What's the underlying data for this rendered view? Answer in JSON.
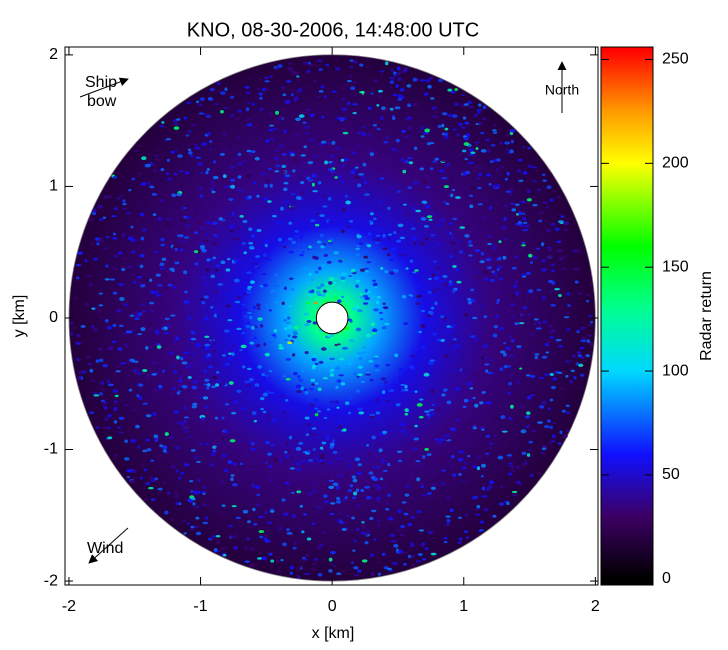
{
  "chart_data": {
    "type": "radar-image",
    "title": "KNO, 08-30-2006, 14:48:00 UTC",
    "x_label": "x [km]",
    "y_label": "y [km]",
    "xlim": [
      -2.03,
      2.02
    ],
    "ylim": [
      -2.03,
      2.06
    ],
    "xticks": [
      -2,
      -1,
      0,
      1,
      2
    ],
    "yticks": [
      -2,
      -1,
      0,
      1,
      2
    ],
    "radius": 2,
    "blind_radius": 0.12,
    "colorbar": {
      "label": "Radar return",
      "clim": [
        -3,
        256
      ],
      "ticks": [
        0,
        50,
        100,
        150,
        200,
        250
      ]
    },
    "colorscale": [
      [
        0,
        "#000000"
      ],
      [
        30,
        "#3c0064"
      ],
      [
        60,
        "#1010ff"
      ],
      [
        100,
        "#00d8ff"
      ],
      [
        130,
        "#00ff90"
      ],
      [
        160,
        "#00ff00"
      ],
      [
        200,
        "#ffff00"
      ],
      [
        225,
        "#ff9a00"
      ],
      [
        255,
        "#ff0000"
      ]
    ],
    "annotations": [
      "Ship",
      "bow",
      "North",
      "Wind"
    ]
  }
}
